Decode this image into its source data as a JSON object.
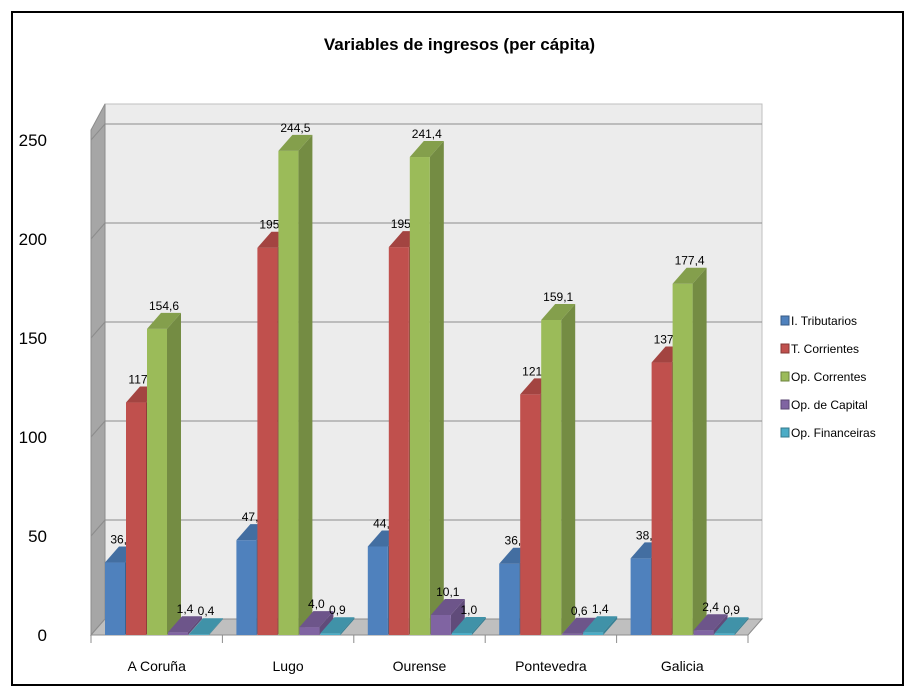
{
  "chart_data": {
    "type": "bar",
    "title": "Variables de ingresos (per cápita)",
    "xlabel": "",
    "ylabel": "",
    "ylim": [
      0,
      250
    ],
    "yticks": [
      0,
      50,
      100,
      150,
      200,
      250
    ],
    "grid": true,
    "legend_position": "right",
    "categories": [
      "A Coruña",
      "Lugo",
      "Ourense",
      "Pontevedra",
      "Galicia"
    ],
    "series": [
      {
        "name": "I. Tributarios",
        "color": "#4F81BD",
        "values": [
          36.6,
          47.9,
          44.7,
          36.0,
          38.7
        ],
        "labels": [
          "36,6",
          "47,9",
          "44,7",
          "36,0",
          "38,7"
        ]
      },
      {
        "name": "T. Corrientes",
        "color": "#C0504D",
        "values": [
          117.4,
          195.6,
          195.9,
          121.5,
          137.6
        ],
        "labels": [
          "117,4",
          "195,6",
          "195,9",
          "121,5",
          "137,6"
        ]
      },
      {
        "name": "Op. Correntes",
        "color": "#9BBB59",
        "values": [
          154.6,
          244.5,
          241.4,
          159.1,
          177.4
        ],
        "labels": [
          "154,6",
          "244,5",
          "241,4",
          "159,1",
          "177,4"
        ]
      },
      {
        "name": "Op. de Capital",
        "color": "#8064A2",
        "values": [
          1.4,
          4.0,
          10.1,
          0.6,
          2.4
        ],
        "labels": [
          "1,4",
          "4,0",
          "10,1",
          "0,6",
          "2,4"
        ]
      },
      {
        "name": "Op. Financeiras",
        "color": "#4BACC6",
        "values": [
          0.4,
          0.9,
          1.0,
          1.4,
          0.9
        ],
        "labels": [
          "0,4",
          "0,9",
          "1,0",
          "1,4",
          "0,9"
        ]
      }
    ]
  }
}
